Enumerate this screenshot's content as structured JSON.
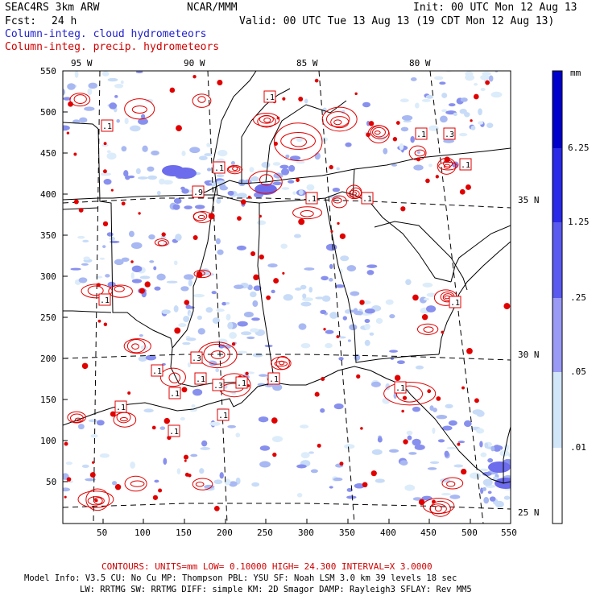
{
  "header": {
    "model": "SEAC4RS  3km ARW",
    "org": "NCAR/MMM",
    "init": "Init: 00 UTC Mon 12 Aug 13",
    "fcst_label": "Fcst:",
    "fcst_value": "24 h",
    "valid": "Valid: 00 UTC Tue 13 Aug 13 (19 CDT Mon 12 Aug 13)",
    "field_blue": "Column-integ. cloud hydrometeors",
    "field_red": "Column-integ. precip. hydrometeors"
  },
  "map": {
    "lon_labels": [
      "95 W",
      "90 W",
      "85 W",
      "80 W"
    ],
    "lat_labels": [
      "35 N",
      "30 N",
      "25 N"
    ],
    "x_ticks": [
      "50",
      "100",
      "150",
      "200",
      "250",
      "300",
      "350",
      "400",
      "450",
      "500",
      "550"
    ],
    "y_ticks": [
      "550",
      "500",
      "450",
      "400",
      "350",
      "300",
      "250",
      "200",
      "150",
      "100",
      "50"
    ],
    "contour_labels": [
      ".1",
      ".1",
      ".1",
      ".3",
      ".1",
      ".9",
      ".1",
      ".1",
      ".1",
      ".3",
      ".1",
      ".1",
      ".1",
      ".3",
      ".1",
      ".1",
      ".1",
      ".1",
      ".1",
      ".1",
      ".1",
      ".1"
    ]
  },
  "colorbar": {
    "unit": "mm",
    "labels": [
      "6.25",
      "1.25",
      ".25",
      ".05",
      ".01"
    ],
    "colors": [
      "#0000cc",
      "#2a2ae8",
      "#5a5af0",
      "#8c8cf4",
      "#c4c8f8",
      "#e4f8fc",
      "#ffffff"
    ]
  },
  "footer": {
    "contours": "CONTOURS:  UNITS=mm  LOW= 0.10000      HIGH= 24.300      INTERVAL=X  3.0000",
    "model_info_1": "Model Info: V3.5      CU: No Cu     MP: Thompson    PBL: YSU      SF: Noah LSM     3.0 km   39 levels   18 sec",
    "model_info_2": "LW: RRTMG    SW: RRTMG   DIFF: simple KM: 2D Smagor DAMP: Rayleigh3   SFLAY: Rev MM5"
  }
}
